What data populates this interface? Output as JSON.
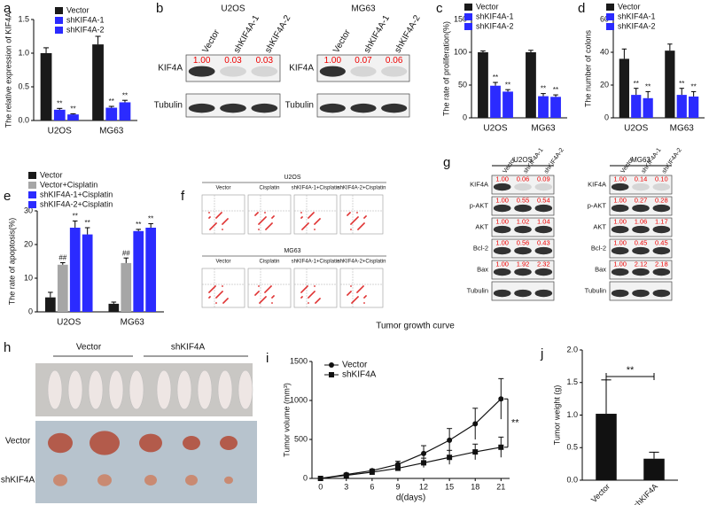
{
  "chart_data": [
    {
      "type": "bar",
      "panel": "a",
      "ylabel": "The relative expression of KIF4A",
      "categories": [
        "U2OS",
        "MG63"
      ],
      "series": [
        {
          "name": "Vector",
          "color": "#1a1a1a",
          "values": [
            1.0,
            1.13
          ],
          "errors": [
            0.08,
            0.12
          ]
        },
        {
          "name": "shKIF4A-1",
          "color": "#2b2bff",
          "values": [
            0.16,
            0.19
          ],
          "errors": [
            0.02,
            0.02
          ],
          "sig": [
            "**",
            "**"
          ]
        },
        {
          "name": "shKIF4A-2",
          "color": "#2b2bff",
          "values": [
            0.09,
            0.27
          ],
          "errors": [
            0.01,
            0.03
          ],
          "sig": [
            "**",
            "**"
          ]
        }
      ],
      "ylim": [
        0,
        1.5
      ],
      "yticks": [
        {
          "value": 0,
          "label": "0.0"
        },
        {
          "value": 0.5,
          "label": "0.5"
        },
        {
          "value": 1,
          "label": "1.0"
        },
        {
          "value": 1.5,
          "label": "1.5"
        }
      ]
    },
    {
      "type": "bar",
      "panel": "c",
      "ylabel": "The rate of proliferation(%)",
      "categories": [
        "U2OS",
        "MG63"
      ],
      "series": [
        {
          "name": "Vector",
          "color": "#1a1a1a",
          "values": [
            100,
            100
          ],
          "errors": [
            2,
            3
          ]
        },
        {
          "name": "shKIF4A-1",
          "color": "#2b2bff",
          "values": [
            49,
            33
          ],
          "errors": [
            5,
            4
          ],
          "sig": [
            "**",
            "**"
          ]
        },
        {
          "name": "shKIF4A-2",
          "color": "#2b2bff",
          "values": [
            40,
            32
          ],
          "errors": [
            3,
            3
          ],
          "sig": [
            "**",
            "**"
          ]
        }
      ],
      "ylim": [
        0,
        150
      ],
      "yticks": [
        0,
        50,
        100,
        150
      ]
    },
    {
      "type": "bar",
      "panel": "d",
      "ylabel": "The number of colons",
      "categories": [
        "U2OS",
        "MG63"
      ],
      "series": [
        {
          "name": "Vector",
          "color": "#1a1a1a",
          "values": [
            36,
            41
          ],
          "errors": [
            6,
            4
          ]
        },
        {
          "name": "shKIF4A-1",
          "color": "#2b2bff",
          "values": [
            14,
            14
          ],
          "errors": [
            4,
            4
          ],
          "sig": [
            "**",
            "**"
          ]
        },
        {
          "name": "shKIF4A-2",
          "color": "#2b2bff",
          "values": [
            12,
            13
          ],
          "errors": [
            4,
            3
          ],
          "sig": [
            "**",
            "**"
          ]
        }
      ],
      "ylim": [
        0,
        60
      ],
      "yticks": [
        0,
        20,
        40,
        60
      ]
    },
    {
      "type": "bar",
      "panel": "e",
      "ylabel": "The rate of apoptosis(%)",
      "categories": [
        "U2OS",
        "MG63"
      ],
      "series": [
        {
          "name": "Vector",
          "color": "#1a1a1a",
          "values": [
            4.3,
            2.4
          ],
          "errors": [
            1.5,
            0.5
          ]
        },
        {
          "name": "Vector+Cisplatin",
          "color": "#a6a6a6",
          "values": [
            14,
            14.5
          ],
          "errors": [
            0.6,
            1.5
          ],
          "sig": [
            "##",
            "##"
          ]
        },
        {
          "name": "shKIF4A-1+Cisplatin",
          "color": "#2b2bff",
          "values": [
            25,
            24
          ],
          "errors": [
            2,
            0.5
          ],
          "sig": [
            "**",
            "**"
          ]
        },
        {
          "name": "shKIF4A-2+Cisplatin",
          "color": "#2b2bff",
          "values": [
            23,
            25
          ],
          "errors": [
            2,
            1.2
          ],
          "sig": [
            "**",
            "**"
          ]
        }
      ],
      "ylim": [
        0,
        30
      ],
      "yticks": [
        0,
        10,
        20,
        30
      ]
    },
    {
      "type": "line",
      "panel": "i",
      "title": "Tumor growth curve",
      "xlabel": "d(days)",
      "ylabel": "Tumor volume (mm³)",
      "x": [
        0,
        3,
        6,
        9,
        12,
        15,
        18,
        21
      ],
      "series": [
        {
          "name": "Vector",
          "color": "#111111",
          "marker": "circle",
          "values": [
            0,
            50,
            100,
            180,
            320,
            490,
            700,
            1020
          ],
          "errors": [
            0,
            10,
            20,
            40,
            100,
            150,
            200,
            260
          ]
        },
        {
          "name": "shKIF4A",
          "color": "#111111",
          "marker": "square",
          "values": [
            0,
            40,
            80,
            130,
            200,
            270,
            340,
            400
          ],
          "errors": [
            0,
            10,
            20,
            30,
            60,
            90,
            100,
            130
          ]
        }
      ],
      "sig": "**",
      "xlim": [
        -1,
        22
      ],
      "xticks": [
        0,
        3,
        6,
        9,
        12,
        15,
        18,
        21
      ],
      "ylim": [
        0,
        1500
      ],
      "yticks": [
        0,
        500,
        1000,
        1500
      ]
    },
    {
      "type": "bar",
      "panel": "j",
      "ylabel": "Tumor weight (g)",
      "categories": [
        "Vector",
        "shKIF4A"
      ],
      "values": [
        1.02,
        0.33
      ],
      "errors": [
        0.52,
        0.1
      ],
      "color": "#111111",
      "sig": "**",
      "ylim": [
        0,
        2
      ],
      "yticks": [
        {
          "value": 0,
          "label": "0.0"
        },
        {
          "value": 0.5,
          "label": "0.5"
        },
        {
          "value": 1,
          "label": "1.0"
        },
        {
          "value": 1.5,
          "label": "1.5"
        },
        {
          "value": 2,
          "label": "2.0"
        }
      ]
    }
  ],
  "panel_b": {
    "panel": "b",
    "blots": [
      {
        "cell": "U2OS",
        "lanes": [
          "Vector",
          "shKIF4A-1",
          "shKIF4A-2"
        ],
        "rows": [
          {
            "label": "KIF4A",
            "values": [
              "1.00",
              "0.03",
              "0.03"
            ]
          },
          {
            "label": "Tubulin"
          }
        ]
      },
      {
        "cell": "MG63",
        "lanes": [
          "Vector",
          "shKIF4A-1",
          "shKIF4A-2"
        ],
        "rows": [
          {
            "label": "KIF4A",
            "values": [
              "1.00",
              "0.07",
              "0.06"
            ]
          },
          {
            "label": "Tubulin"
          }
        ]
      }
    ]
  },
  "panel_f": {
    "panel": "f",
    "groups": [
      {
        "cell": "U2OS",
        "conditions": [
          "Vector",
          "Cisplatin",
          "shKIF4A-1+Cisplatin",
          "shKIF4A-2+Cisplatin"
        ]
      },
      {
        "cell": "MG63",
        "conditions": [
          "Vector",
          "Cisplatin",
          "shKIF4A-1+Cisplatin",
          "shKIF4A-2+Cisplatin"
        ]
      }
    ]
  },
  "panel_g": {
    "panel": "g",
    "blots": [
      {
        "cell": "U2OS",
        "lanes": [
          "Vector",
          "shKIF4A-1",
          "shKIF4A-2"
        ],
        "rows": [
          {
            "label": "KIF4A",
            "values": [
              "1.00",
              "0.06",
              "0.09"
            ]
          },
          {
            "label": "p-AKT",
            "values": [
              "1.00",
              "0.55",
              "0.54"
            ]
          },
          {
            "label": "AKT",
            "values": [
              "1.00",
              "1.02",
              "1.04"
            ]
          },
          {
            "label": "Bcl-2",
            "values": [
              "1.00",
              "0.56",
              "0.43"
            ]
          },
          {
            "label": "Bax",
            "values": [
              "1.00",
              "1.92",
              "2.32"
            ]
          },
          {
            "label": "Tubulin"
          }
        ]
      },
      {
        "cell": "MG63",
        "lanes": [
          "Vector",
          "shKIF4A-1",
          "shKIF4A-2"
        ],
        "rows": [
          {
            "label": "KIF4A",
            "values": [
              "1.00",
              "0.14",
              "0.10"
            ]
          },
          {
            "label": "p-AKT",
            "values": [
              "1.00",
              "0.27",
              "0.28"
            ]
          },
          {
            "label": "AKT",
            "values": [
              "1.00",
              "1.06",
              "1.17"
            ]
          },
          {
            "label": "Bcl-2",
            "values": [
              "1.00",
              "0.45",
              "0.45"
            ]
          },
          {
            "label": "Bax",
            "values": [
              "1.00",
              "2.12",
              "2.18"
            ]
          },
          {
            "label": "Tubulin"
          }
        ]
      }
    ]
  },
  "panel_h": {
    "panel": "h",
    "groups": [
      "Vector",
      "shKIF4A"
    ],
    "rows": [
      "Vector",
      "shKIF4A"
    ]
  }
}
